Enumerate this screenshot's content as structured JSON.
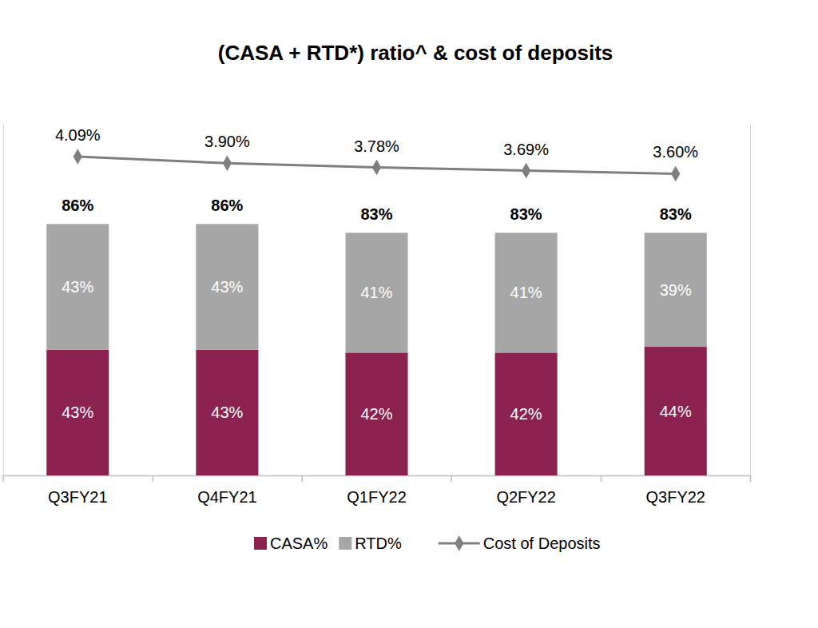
{
  "chart_data": {
    "type": "bar",
    "title": "(CASA + RTD*) ratio^ & cost of deposits",
    "categories": [
      "Q3FY21",
      "Q4FY21",
      "Q1FY22",
      "Q2FY22",
      "Q3FY22"
    ],
    "stacked": true,
    "data_labels": true,
    "legend": "bottom",
    "tick_labels": "x",
    "grid": false,
    "ylim": [
      0,
      120
    ],
    "yticks": [],
    "y2lim": [
      -5,
      5
    ],
    "y2ticks": [],
    "series": [
      {
        "name": "CASA%",
        "type": "bar",
        "color": "#8b2250",
        "values": [
          43,
          43,
          42,
          42,
          44
        ],
        "value_labels": [
          "43%",
          "43%",
          "42%",
          "42%",
          "44%"
        ]
      },
      {
        "name": "RTD%",
        "type": "bar",
        "color": "#a6a6a6",
        "values": [
          43,
          43,
          41,
          41,
          39
        ],
        "value_labels": [
          "43%",
          "43%",
          "41%",
          "41%",
          "39%"
        ]
      },
      {
        "name": "Cost of Deposits",
        "type": "line",
        "axis": "y2",
        "color": "#7f7f7f",
        "marker": "diamond",
        "line_style": "solid",
        "values": [
          4.09,
          3.9,
          3.78,
          3.69,
          3.6
        ],
        "value_labels": [
          "4.09%",
          "3.90%",
          "3.78%",
          "3.69%",
          "3.60%"
        ]
      }
    ],
    "totals": {
      "values": [
        86,
        86,
        83,
        83,
        83
      ],
      "value_labels": [
        "86%",
        "86%",
        "83%",
        "83%",
        "83%"
      ]
    }
  }
}
